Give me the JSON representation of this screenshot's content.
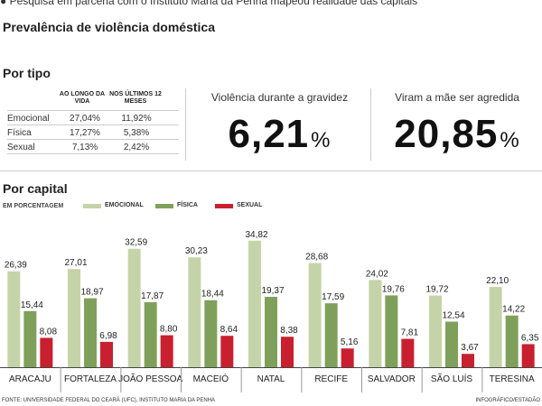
{
  "header": {
    "top_line": "● Pesquisa em parceria com o Instituto Maria da Penha mapeou realidade das capitais",
    "title": "Prevalência de violência doméstica"
  },
  "por_tipo": {
    "title": "Por tipo",
    "col_lifetime": "AO LONGO DA VIDA",
    "col_12months": "NOS ÚLTIMOS 12 MESES",
    "rows": [
      {
        "label": "Emocional",
        "lifetime": "27,04%",
        "last12": "11,92%"
      },
      {
        "label": "Física",
        "lifetime": "17,27%",
        "last12": "5,38%"
      },
      {
        "label": "Sexual",
        "lifetime": "7,13%",
        "last12": "2,42%"
      }
    ]
  },
  "kpis": [
    {
      "label": "Violência durante a gravidez",
      "value": "6,21",
      "unit": "%"
    },
    {
      "label": "Viram a mãe ser agredida",
      "value": "20,85",
      "unit": "%"
    }
  ],
  "por_capital": {
    "title": "Por capital",
    "unit_note": "EM PORCENTAGEM"
  },
  "colors": {
    "emocional": "#c5d4a8",
    "fisica": "#7fa05a",
    "sexual": "#c8202f"
  },
  "chart_data": {
    "type": "bar",
    "categories": [
      "ARACAJU",
      "FORTALEZA",
      "JOÃO PESSOA",
      "MACEIÓ",
      "NATAL",
      "RECIFE",
      "SALVADOR",
      "SÃO LUÍS",
      "TERESINA"
    ],
    "series": [
      {
        "name": "EMOCIONAL",
        "values": [
          26.39,
          27.01,
          32.59,
          30.23,
          34.82,
          28.68,
          24.02,
          19.72,
          22.1
        ],
        "labels": [
          "26,39",
          "27,01",
          "32,59",
          "30,23",
          "34,82",
          "28,68",
          "24,02",
          "19,72",
          "22,10"
        ]
      },
      {
        "name": "FÍSICA",
        "values": [
          15.44,
          18.97,
          17.87,
          18.44,
          19.37,
          17.59,
          19.76,
          12.54,
          14.22
        ],
        "labels": [
          "15,44",
          "18,97",
          "17,87",
          "18,44",
          "19,37",
          "17,59",
          "19,76",
          "12,54",
          "14,22"
        ]
      },
      {
        "name": "SEXUAL",
        "values": [
          8.08,
          6.98,
          8.8,
          8.64,
          8.38,
          5.16,
          7.81,
          3.67,
          6.35
        ],
        "labels": [
          "8,08",
          "6,98",
          "8,80",
          "8,64",
          "8,38",
          "5,16",
          "7,81",
          "3,67",
          "6,35"
        ]
      }
    ],
    "ylim": [
      0,
      36
    ],
    "grid": false,
    "legend": "top"
  },
  "footer": {
    "source": "FONTE: UNIVERSIDADE FEDERAL DO CEARÁ (UFC), INSTITUTO MARIA DA PENHA",
    "credit": "INFOGRÁFICO/ESTADÃO"
  }
}
